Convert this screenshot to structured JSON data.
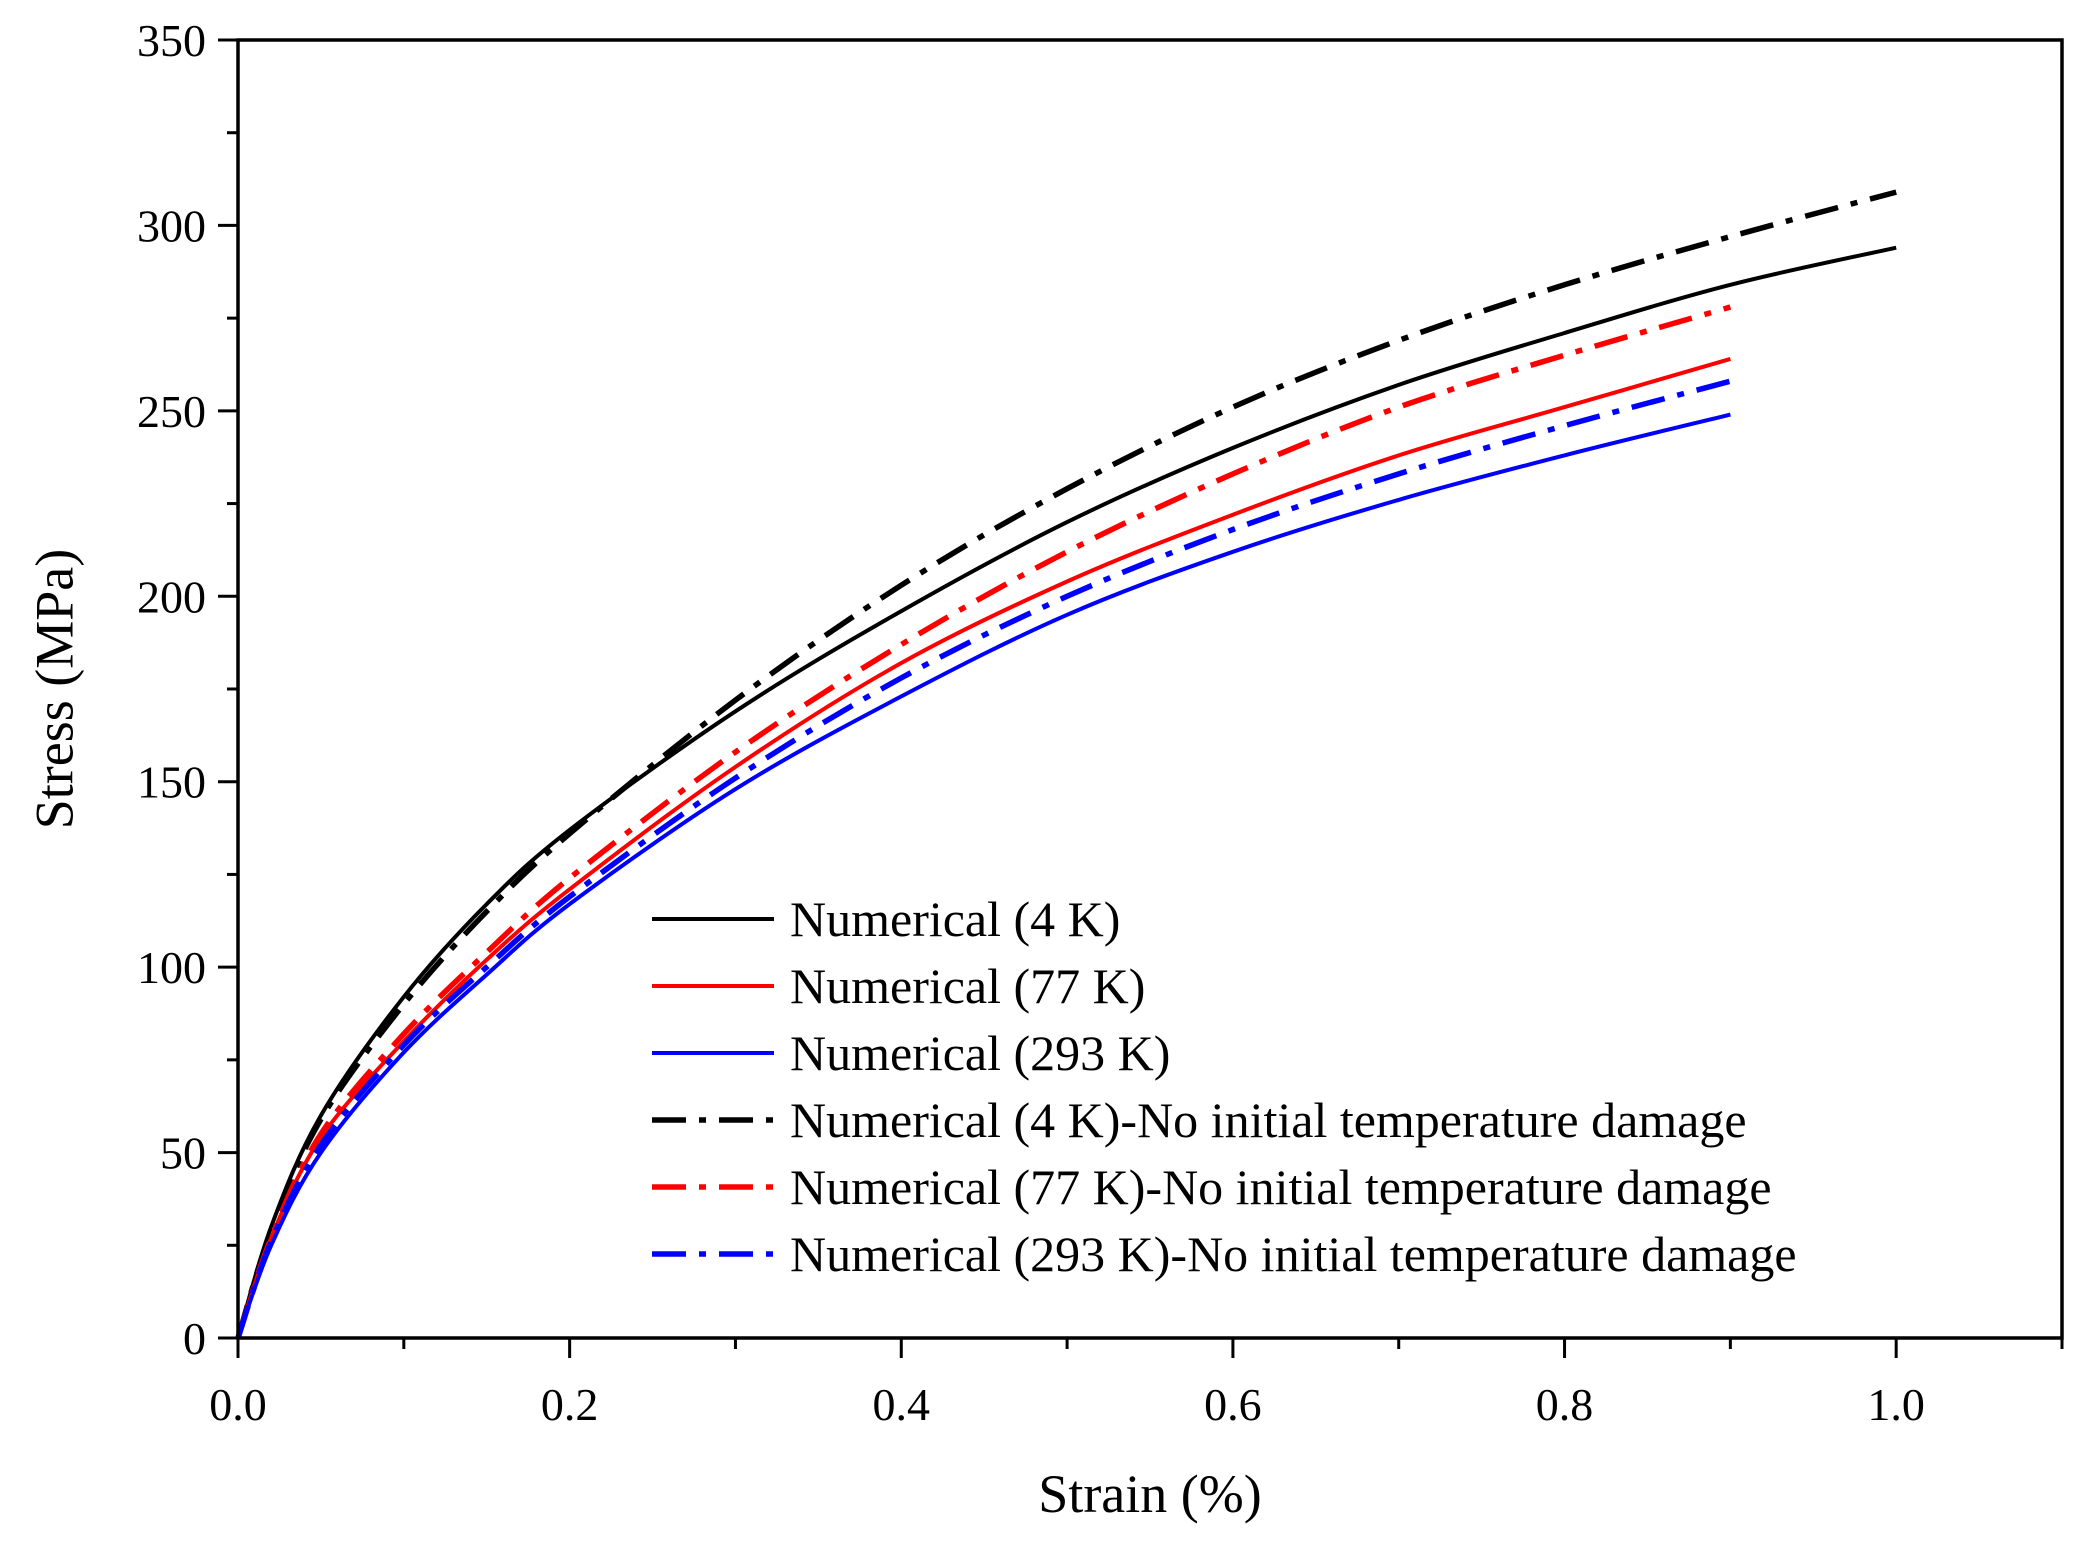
{
  "chart_data": {
    "type": "line",
    "title": "",
    "xlabel": "Strain (%)",
    "ylabel": "Stress (MPa)",
    "xlim": [
      0.0,
      1.1
    ],
    "ylim": [
      0,
      350
    ],
    "xticks": [
      0.0,
      0.2,
      0.4,
      0.6,
      0.8,
      1.0
    ],
    "xtick_labels": [
      "0.0",
      "0.2",
      "0.4",
      "0.6",
      "0.8",
      "1.0"
    ],
    "yticks": [
      0,
      50,
      100,
      150,
      200,
      250,
      300,
      350
    ],
    "ytick_labels": [
      "0",
      "50",
      "100",
      "150",
      "200",
      "250",
      "300",
      "350"
    ],
    "grid": false,
    "legend_position": "lower-center",
    "series": [
      {
        "name": "Numerical (4 K)",
        "color": "#000000",
        "style": "solid",
        "x": [
          0,
          0.02,
          0.05,
          0.1,
          0.15,
          0.2,
          0.3,
          0.4,
          0.5,
          0.6,
          0.7,
          0.8,
          0.9,
          1.0
        ],
        "y": [
          0,
          30,
          60,
          92,
          117,
          137,
          169,
          196,
          220,
          240,
          257,
          271,
          284,
          294
        ]
      },
      {
        "name": "Numerical (77 K)",
        "color": "#ff0000",
        "style": "solid",
        "x": [
          0,
          0.02,
          0.05,
          0.1,
          0.15,
          0.2,
          0.3,
          0.4,
          0.5,
          0.6,
          0.7,
          0.8,
          0.9
        ],
        "y": [
          0,
          27,
          54,
          80,
          102,
          121,
          154,
          182,
          204,
          222,
          238,
          251,
          264
        ]
      },
      {
        "name": "Numerical (293 K)",
        "color": "#0000ff",
        "style": "solid",
        "x": [
          0,
          0.02,
          0.05,
          0.1,
          0.15,
          0.2,
          0.3,
          0.4,
          0.5,
          0.6,
          0.7,
          0.8,
          0.9
        ],
        "y": [
          0,
          25,
          50,
          77,
          98,
          117,
          148,
          173,
          195,
          212,
          226,
          238,
          249
        ]
      },
      {
        "name": "Numerical (4 K)-No initial temperature damage",
        "color": "#000000",
        "style": "dashdot",
        "x": [
          0,
          0.02,
          0.05,
          0.1,
          0.15,
          0.2,
          0.3,
          0.4,
          0.5,
          0.6,
          0.7,
          0.8,
          0.9,
          1.0
        ],
        "y": [
          0,
          29,
          59,
          90,
          115,
          136,
          172,
          203,
          229,
          251,
          269,
          284,
          297,
          309
        ]
      },
      {
        "name": "Numerical (77 K)-No initial temperature damage",
        "color": "#ff0000",
        "style": "dashdot",
        "x": [
          0,
          0.02,
          0.05,
          0.1,
          0.15,
          0.2,
          0.3,
          0.4,
          0.5,
          0.6,
          0.7,
          0.8,
          0.9
        ],
        "y": [
          0,
          27,
          55,
          82,
          104,
          124,
          158,
          187,
          212,
          233,
          251,
          265,
          278
        ]
      },
      {
        "name": "Numerical (293 K)-No initial temperature damage",
        "color": "#0000ff",
        "style": "dashdot",
        "x": [
          0,
          0.02,
          0.05,
          0.1,
          0.15,
          0.2,
          0.3,
          0.4,
          0.5,
          0.6,
          0.7,
          0.8,
          0.9
        ],
        "y": [
          0,
          26,
          52,
          79,
          100,
          119,
          151,
          178,
          200,
          218,
          233,
          246,
          258
        ]
      }
    ]
  }
}
